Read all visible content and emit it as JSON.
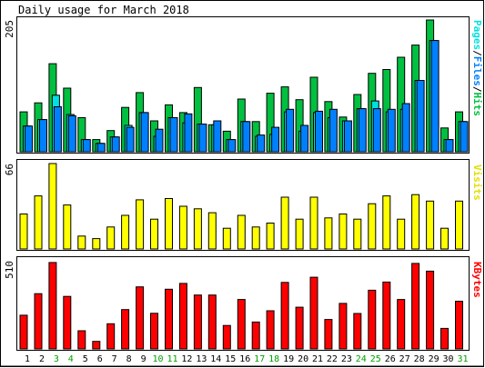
{
  "title": "Daily usage for March 2018",
  "colors": {
    "hits": "#00c040",
    "files": "#0080ff",
    "pages": "#00e0e0",
    "visits": "#ffff00",
    "kbytes": "#ff0000",
    "weekend_label": "#00a000",
    "weekday_label": "#000000",
    "frame_bg": "#ffffff",
    "page_bg": "#ffffff",
    "border": "#000000"
  },
  "chart_data": [
    {
      "type": "bar",
      "name": "pages-files-hits",
      "ymax_label": "205",
      "legend": {
        "pages": "Pages",
        "files": "Files",
        "hits": "Hits",
        "sep": "/"
      },
      "categories": [
        "1",
        "2",
        "3",
        "4",
        "5",
        "6",
        "7",
        "8",
        "9",
        "10",
        "11",
        "12",
        "13",
        "14",
        "15",
        "16",
        "17",
        "18",
        "19",
        "20",
        "21",
        "22",
        "23",
        "24",
        "25",
        "26",
        "27",
        "28",
        "29",
        "30",
        "31"
      ],
      "ylim": [
        0,
        205
      ],
      "series": [
        {
          "name": "Hits",
          "values": [
            62,
            76,
            137,
            99,
            53,
            19,
            33,
            69,
            92,
            48,
            73,
            61,
            100,
            42,
            32,
            82,
            47,
            91,
            101,
            81,
            116,
            78,
            54,
            89,
            122,
            128,
            147,
            166,
            205,
            37,
            62
          ]
        },
        {
          "name": "Files",
          "values": [
            40,
            50,
            70,
            56,
            19,
            13,
            23,
            38,
            61,
            35,
            53,
            59,
            43,
            48,
            19,
            47,
            26,
            38,
            66,
            41,
            63,
            66,
            48,
            67,
            67,
            66,
            75,
            111,
            173,
            19,
            47
          ]
        },
        {
          "name": "Pages",
          "values": [
            40,
            50,
            88,
            58,
            19,
            13,
            23,
            41,
            61,
            24,
            53,
            45,
            43,
            42,
            19,
            47,
            24,
            27,
            62,
            32,
            61,
            53,
            48,
            67,
            79,
            62,
            66,
            111,
            173,
            19,
            47
          ]
        }
      ]
    },
    {
      "type": "bar",
      "name": "visits",
      "ymax_label": "66",
      "legend": {
        "visits": "Visits"
      },
      "categories": [
        "1",
        "2",
        "3",
        "4",
        "5",
        "6",
        "7",
        "8",
        "9",
        "10",
        "11",
        "12",
        "13",
        "14",
        "15",
        "16",
        "17",
        "18",
        "19",
        "20",
        "21",
        "22",
        "23",
        "24",
        "25",
        "26",
        "27",
        "28",
        "29",
        "30",
        "31"
      ],
      "ylim": [
        0,
        66
      ],
      "series": [
        {
          "name": "Visits",
          "values": [
            27,
            41,
            66,
            34,
            10,
            8,
            17,
            26,
            38,
            23,
            39,
            33,
            31,
            28,
            16,
            26,
            17,
            20,
            40,
            23,
            40,
            24,
            27,
            23,
            35,
            41,
            23,
            42,
            37,
            16,
            37
          ]
        }
      ]
    },
    {
      "type": "bar",
      "name": "kbytes",
      "ymax_label": "510",
      "legend": {
        "kbytes": "KBytes"
      },
      "categories": [
        "1",
        "2",
        "3",
        "4",
        "5",
        "6",
        "7",
        "8",
        "9",
        "10",
        "11",
        "12",
        "13",
        "14",
        "15",
        "16",
        "17",
        "18",
        "19",
        "20",
        "21",
        "22",
        "23",
        "24",
        "25",
        "26",
        "27",
        "28",
        "29",
        "30",
        "31"
      ],
      "ylim": [
        0,
        510
      ],
      "series": [
        {
          "name": "KBytes",
          "values": [
            197,
            323,
            505,
            307,
            106,
            44,
            147,
            230,
            363,
            208,
            349,
            383,
            315,
            315,
            137,
            289,
            157,
            223,
            389,
            244,
            419,
            172,
            266,
            207,
            343,
            391,
            289,
            500,
            455,
            120,
            279
          ]
        }
      ]
    }
  ],
  "x_labels": [
    "1",
    "2",
    "3",
    "4",
    "5",
    "6",
    "7",
    "8",
    "9",
    "10",
    "11",
    "12",
    "13",
    "14",
    "15",
    "16",
    "17",
    "18",
    "19",
    "20",
    "21",
    "22",
    "23",
    "24",
    "25",
    "26",
    "27",
    "28",
    "29",
    "30",
    "31"
  ],
  "weekend_days": [
    3,
    4,
    10,
    11,
    17,
    18,
    24,
    25,
    31
  ]
}
